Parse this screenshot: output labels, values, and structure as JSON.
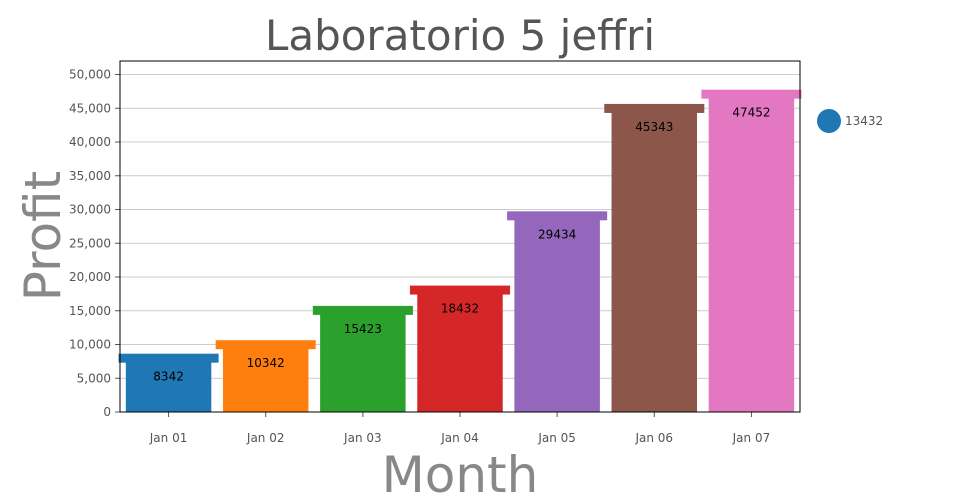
{
  "chart_data": {
    "type": "bar",
    "title": "Laboratorio 5 jeffri",
    "xlabel": "Month",
    "ylabel": "Profit",
    "categories": [
      "Jan 01",
      "Jan 02",
      "Jan 03",
      "Jan 04",
      "Jan 05",
      "Jan 06",
      "Jan 07"
    ],
    "values": [
      8342,
      10342,
      15423,
      18432,
      29434,
      45343,
      47452
    ],
    "data_labels": [
      "8342",
      "10342",
      "15423",
      "18432",
      "29434",
      "45343",
      "47452"
    ],
    "colors": [
      "#1f77b4",
      "#ff7f0e",
      "#2ca02c",
      "#d62728",
      "#9467bd",
      "#8c564b",
      "#e377c2"
    ],
    "ylim": [
      0,
      52000
    ],
    "yticks": [
      0,
      5000,
      10000,
      15000,
      20000,
      25000,
      30000,
      35000,
      40000,
      45000,
      50000
    ],
    "ytick_labels": [
      "0",
      "5,000",
      "10,000",
      "15,000",
      "20,000",
      "25,000",
      "30,000",
      "35,000",
      "40,000",
      "45,000",
      "50,000"
    ],
    "grid": true,
    "legend": {
      "placement": "right",
      "entries": [
        {
          "label": "13432",
          "color": "#1f77b4"
        }
      ]
    }
  }
}
